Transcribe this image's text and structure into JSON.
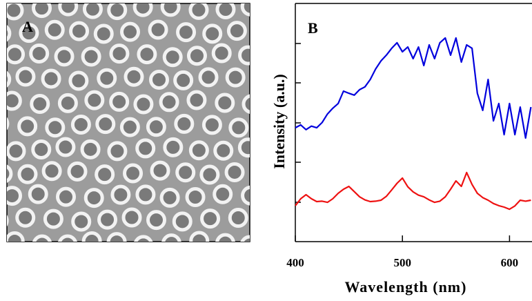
{
  "panel_a": {
    "label": "A"
  },
  "chart_data": {
    "type": "line",
    "panel_label": "B",
    "x_label": "Wavelength (nm)",
    "y_label": "Intensity (a.u.)",
    "x": [
      400,
      405,
      410,
      415,
      420,
      425,
      430,
      435,
      440,
      445,
      450,
      455,
      460,
      465,
      470,
      475,
      480,
      485,
      490,
      495,
      500,
      505,
      510,
      515,
      520,
      525,
      530,
      535,
      540,
      545,
      550,
      555,
      560,
      565,
      570,
      575,
      580,
      585,
      590,
      595,
      600,
      605,
      610,
      615,
      620
    ],
    "series": [
      {
        "color": "#0000dd",
        "values": [
          4.78,
          4.9,
          4.7,
          4.85,
          4.78,
          5.0,
          5.36,
          5.6,
          5.8,
          6.32,
          6.23,
          6.15,
          6.38,
          6.5,
          6.81,
          7.25,
          7.59,
          7.83,
          8.12,
          8.35,
          7.97,
          8.17,
          7.68,
          8.17,
          7.39,
          8.26,
          7.68,
          8.35,
          8.55,
          7.83,
          8.55,
          7.54,
          8.26,
          8.12,
          6.23,
          5.51,
          6.81,
          5.07,
          5.8,
          4.49,
          5.8,
          4.49,
          5.65,
          4.35,
          5.65
        ]
      },
      {
        "color": "#ee1111",
        "values": [
          1.51,
          1.8,
          1.97,
          1.8,
          1.68,
          1.7,
          1.65,
          1.8,
          2.03,
          2.2,
          2.32,
          2.1,
          1.88,
          1.75,
          1.68,
          1.7,
          1.74,
          1.9,
          2.17,
          2.45,
          2.67,
          2.3,
          2.09,
          1.95,
          1.88,
          1.75,
          1.65,
          1.7,
          1.88,
          2.2,
          2.55,
          2.32,
          2.9,
          2.4,
          2.03,
          1.85,
          1.74,
          1.6,
          1.51,
          1.45,
          1.36,
          1.5,
          1.74,
          1.7,
          1.74
        ]
      }
    ],
    "xlim": [
      400,
      621
    ],
    "ylim": [
      0,
      10
    ],
    "xticks": [
      400,
      500,
      600
    ]
  }
}
